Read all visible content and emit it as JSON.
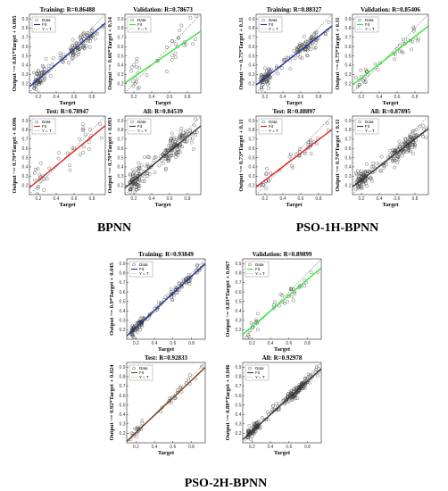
{
  "groups": [
    {
      "name": "BPNN"
    },
    {
      "name": "PSO-1H-BPNN"
    },
    {
      "name": "PSO-2H-BPNN"
    }
  ],
  "legend": {
    "data": "Data",
    "fit": "Fit",
    "identity": "Y = T"
  },
  "xlabel": "Target",
  "chart_data": [
    {
      "type": "scatter",
      "group": "BPNN",
      "title": "Training: R=0.86488",
      "ylabel": "Output ~= 0.81*Target + 0.085",
      "fit": {
        "slope": 0.81,
        "intercept": 0.085
      },
      "fit_color": "#1f2f9a",
      "R": 0.86488,
      "xlim": [
        0.1,
        0.95
      ],
      "ylim": [
        0.1,
        0.95
      ],
      "xticks": [
        0.2,
        0.4,
        0.6,
        0.8
      ],
      "yticks": [
        0.2,
        0.3,
        0.4,
        0.5,
        0.6,
        0.7,
        0.8,
        0.9
      ],
      "n_points": 150,
      "seed": 11
    },
    {
      "type": "scatter",
      "group": "BPNN",
      "title": "Validation: R=0.78673",
      "ylabel": "Output ~= 0.66*Target + 0.14",
      "fit": {
        "slope": 0.66,
        "intercept": 0.14
      },
      "fit_color": "#2ee82e",
      "R": 0.78673,
      "xlim": [
        0.1,
        0.95
      ],
      "ylim": [
        0.1,
        0.95
      ],
      "xticks": [
        0.2,
        0.4,
        0.6,
        0.8
      ],
      "yticks": [
        0.2,
        0.3,
        0.4,
        0.5,
        0.6,
        0.7,
        0.8,
        0.9
      ],
      "n_points": 40,
      "seed": 23
    },
    {
      "type": "scatter",
      "group": "BPNN",
      "title": "Test: R=0.78947",
      "ylabel": "Output ~= 0.79*Target + 0.096",
      "fit": {
        "slope": 0.79,
        "intercept": 0.096
      },
      "fit_color": "#e02020",
      "R": 0.78947,
      "xlim": [
        0.1,
        0.95
      ],
      "ylim": [
        0.1,
        0.95
      ],
      "xticks": [
        0.2,
        0.4,
        0.6,
        0.8
      ],
      "yticks": [
        0.2,
        0.3,
        0.4,
        0.5,
        0.6,
        0.7,
        0.8,
        0.9
      ],
      "n_points": 40,
      "seed": 37
    },
    {
      "type": "scatter",
      "group": "BPNN",
      "title": "All: R=0.84539",
      "ylabel": "Output ~= 0.79*Target + 0.093",
      "fit": {
        "slope": 0.79,
        "intercept": 0.093
      },
      "fit_color": "#333333",
      "R": 0.84539,
      "xlim": [
        0.1,
        0.95
      ],
      "ylim": [
        0.1,
        0.95
      ],
      "xticks": [
        0.2,
        0.4,
        0.6,
        0.8
      ],
      "yticks": [
        0.2,
        0.3,
        0.4,
        0.5,
        0.6,
        0.7,
        0.8,
        0.9
      ],
      "n_points": 220,
      "seed": 41
    },
    {
      "type": "scatter",
      "group": "PSO-1H-BPNN",
      "title": "Training: R=0.88327",
      "ylabel": "Output ~= 0.75*Target + 0.11",
      "fit": {
        "slope": 0.75,
        "intercept": 0.11
      },
      "fit_color": "#1f2f9a",
      "R": 0.88327,
      "xlim": [
        0.1,
        0.95
      ],
      "ylim": [
        0.1,
        0.95
      ],
      "xticks": [
        0.2,
        0.4,
        0.6,
        0.8
      ],
      "yticks": [
        0.2,
        0.3,
        0.4,
        0.5,
        0.6,
        0.7,
        0.8,
        0.9
      ],
      "n_points": 150,
      "seed": 53
    },
    {
      "type": "scatter",
      "group": "PSO-1H-BPNN",
      "title": "Validation: R=0.85406",
      "ylabel": "Output ~= 0.75*Target + 0.11",
      "fit": {
        "slope": 0.75,
        "intercept": 0.11
      },
      "fit_color": "#2ee82e",
      "R": 0.85406,
      "xlim": [
        0.1,
        0.95
      ],
      "ylim": [
        0.1,
        0.95
      ],
      "xticks": [
        0.2,
        0.4,
        0.6,
        0.8
      ],
      "yticks": [
        0.2,
        0.3,
        0.4,
        0.5,
        0.6,
        0.7,
        0.8,
        0.9
      ],
      "n_points": 40,
      "seed": 61
    },
    {
      "type": "scatter",
      "group": "PSO-1H-BPNN",
      "title": "Test: R=0.88897",
      "ylabel": "Output ~= 0.73*Target + 0.11",
      "fit": {
        "slope": 0.73,
        "intercept": 0.11
      },
      "fit_color": "#e02020",
      "R": 0.88897,
      "xlim": [
        0.1,
        0.95
      ],
      "ylim": [
        0.1,
        0.95
      ],
      "xticks": [
        0.2,
        0.4,
        0.6,
        0.8
      ],
      "yticks": [
        0.2,
        0.3,
        0.4,
        0.5,
        0.6,
        0.7,
        0.8,
        0.9
      ],
      "n_points": 40,
      "seed": 71
    },
    {
      "type": "scatter",
      "group": "PSO-1H-BPNN",
      "title": "All: R=0.87895",
      "ylabel": "Output ~= 0.74*Target + 0.11",
      "fit": {
        "slope": 0.74,
        "intercept": 0.11
      },
      "fit_color": "#333333",
      "R": 0.87895,
      "xlim": [
        0.1,
        0.95
      ],
      "ylim": [
        0.1,
        0.95
      ],
      "xticks": [
        0.2,
        0.4,
        0.6,
        0.8
      ],
      "yticks": [
        0.2,
        0.3,
        0.4,
        0.5,
        0.6,
        0.7,
        0.8,
        0.9
      ],
      "n_points": 220,
      "seed": 83
    },
    {
      "type": "scatter",
      "group": "PSO-2H-BPNN",
      "title": "Training: R=0.93849",
      "ylabel": "Output ~= 0.9*Target + 0.045",
      "fit": {
        "slope": 0.9,
        "intercept": 0.045
      },
      "fit_color": "#1f2f9a",
      "R": 0.93849,
      "xlim": [
        0.1,
        0.95
      ],
      "ylim": [
        0.1,
        0.95
      ],
      "xticks": [
        0.2,
        0.4,
        0.6,
        0.8
      ],
      "yticks": [
        0.2,
        0.3,
        0.4,
        0.5,
        0.6,
        0.7,
        0.8,
        0.9
      ],
      "n_points": 150,
      "seed": 97
    },
    {
      "type": "scatter",
      "group": "PSO-2H-BPNN",
      "title": "Validation: R=0.89899",
      "ylabel": "Output ~= 0.83*Target + 0.067",
      "fit": {
        "slope": 0.83,
        "intercept": 0.067
      },
      "fit_color": "#2ee82e",
      "R": 0.89899,
      "xlim": [
        0.1,
        0.95
      ],
      "ylim": [
        0.1,
        0.95
      ],
      "xticks": [
        0.2,
        0.4,
        0.6,
        0.8
      ],
      "yticks": [
        0.2,
        0.3,
        0.4,
        0.5,
        0.6,
        0.7,
        0.8,
        0.9
      ],
      "n_points": 40,
      "seed": 101
    },
    {
      "type": "scatter",
      "group": "PSO-2H-BPNN",
      "title": "Test: R=0.92833",
      "ylabel": "Output ~= 0.92*Target + 0.024",
      "fit": {
        "slope": 0.92,
        "intercept": 0.024
      },
      "fit_color": "#7a3a1a",
      "R": 0.92833,
      "xlim": [
        0.1,
        0.95
      ],
      "ylim": [
        0.1,
        0.95
      ],
      "xticks": [
        0.2,
        0.4,
        0.6,
        0.8
      ],
      "yticks": [
        0.2,
        0.3,
        0.4,
        0.5,
        0.6,
        0.7,
        0.8,
        0.9
      ],
      "n_points": 40,
      "seed": 113
    },
    {
      "type": "scatter",
      "group": "PSO-2H-BPNN",
      "title": "All: R=0.92978",
      "ylabel": "Output ~= 0.88*Target + 0.046",
      "fit": {
        "slope": 0.88,
        "intercept": 0.046
      },
      "fit_color": "#333333",
      "R": 0.92978,
      "xlim": [
        0.1,
        0.95
      ],
      "ylim": [
        0.1,
        0.95
      ],
      "xticks": [
        0.2,
        0.4,
        0.6,
        0.8
      ],
      "yticks": [
        0.2,
        0.3,
        0.4,
        0.5,
        0.6,
        0.7,
        0.8,
        0.9
      ],
      "n_points": 220,
      "seed": 127
    }
  ]
}
